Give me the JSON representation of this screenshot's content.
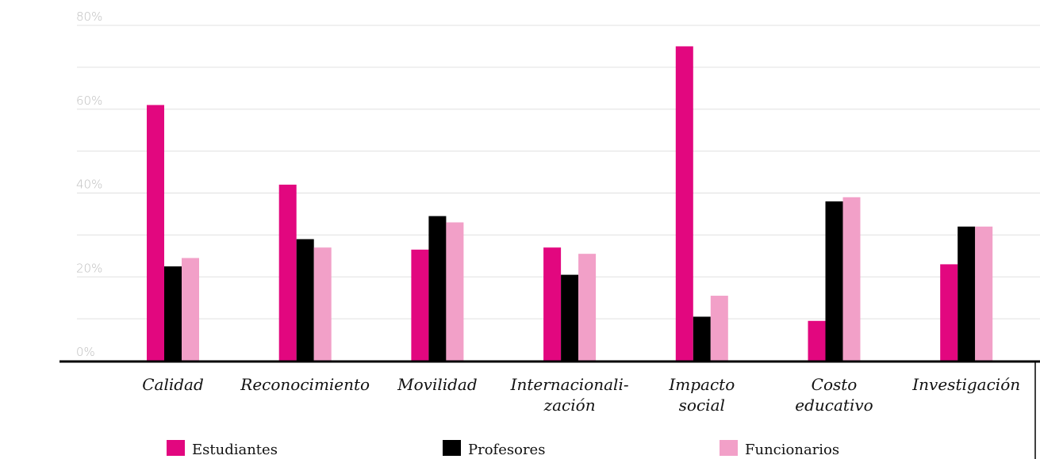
{
  "chart_data": {
    "type": "bar",
    "categories": [
      [
        "Calidad"
      ],
      [
        "Reconocimiento"
      ],
      [
        "Movilidad"
      ],
      [
        "Internacionali-",
        "zación"
      ],
      [
        "Impacto",
        "social"
      ],
      [
        "Costo",
        "educativo"
      ],
      [
        "Investigación"
      ]
    ],
    "series": [
      {
        "name": "Estudiantes",
        "color": "#e2077f",
        "values": [
          61,
          42,
          26.5,
          27,
          75,
          9.5,
          23
        ]
      },
      {
        "name": "Profesores",
        "color": "#000000",
        "values": [
          22.5,
          29,
          34.5,
          20.5,
          10.5,
          38,
          32
        ]
      },
      {
        "name": "Funcionarios",
        "color": "#f2a0c8",
        "values": [
          24.5,
          27,
          33,
          25.5,
          15.5,
          39,
          32
        ]
      }
    ],
    "yticks": [
      "0%",
      "20%",
      "40%",
      "60%",
      "80%"
    ],
    "ylim": [
      0,
      80
    ],
    "grid": true,
    "legend_position": "bottom"
  }
}
